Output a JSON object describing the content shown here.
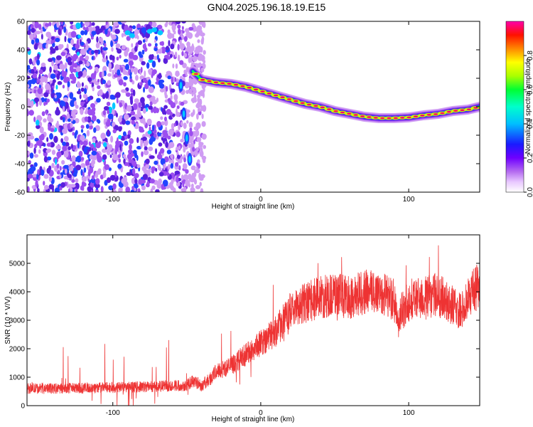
{
  "title": "GN04.2025.196.18.19.E15",
  "chart_data": [
    {
      "type": "heatmap",
      "xlabel": "Height of straight line (km)",
      "ylabel": "Frequency (Hz)",
      "xlim": [
        -158,
        148
      ],
      "ylim": [
        -60,
        60
      ],
      "xticks": [
        -100,
        0,
        100
      ],
      "yticks": [
        -60,
        -40,
        -20,
        0,
        20,
        40,
        60
      ],
      "ridge": {
        "x": [
          -46,
          -40,
          -30,
          -20,
          -10,
          0,
          10,
          20,
          30,
          40,
          50,
          60,
          70,
          80,
          90,
          100,
          110,
          120,
          130,
          140,
          148
        ],
        "y": [
          25,
          19,
          17,
          16,
          14,
          11,
          8,
          5,
          2,
          0,
          -3,
          -5,
          -7,
          -8,
          -8,
          -7.5,
          -6,
          -5,
          -3,
          -2,
          0
        ]
      },
      "noise_region": {
        "x": [
          -158,
          -38
        ]
      },
      "vertical_streak": {
        "x": [
          -54,
          -52,
          -50,
          -48
        ],
        "y": [
          15,
          -5,
          -22,
          -37
        ]
      },
      "colorbar": {
        "label": "Normalized spectral amplitude",
        "range": [
          0,
          1
        ],
        "ticks": [
          0.0,
          0.2,
          0.4,
          0.6,
          0.8
        ],
        "colormap": "rainbow"
      }
    },
    {
      "type": "line",
      "xlabel": "Height of straight line (km)",
      "ylabel": "SNR (10 * V/V)",
      "xlim": [
        -158,
        148
      ],
      "ylim": [
        0,
        6000
      ],
      "xticks": [
        -100,
        0,
        100
      ],
      "yticks": [
        0,
        1000,
        2000,
        3000,
        4000,
        5000
      ],
      "color": "#ee3333",
      "x": [
        -158,
        -140,
        -120,
        -100,
        -80,
        -60,
        -50,
        -45,
        -40,
        -35,
        -30,
        -20,
        -10,
        0,
        10,
        20,
        30,
        40,
        50,
        60,
        70,
        80,
        85,
        90,
        93,
        95,
        100,
        110,
        120,
        130,
        135,
        140,
        148
      ],
      "y": [
        600,
        600,
        620,
        640,
        660,
        700,
        720,
        900,
        700,
        900,
        1200,
        1400,
        1800,
        2200,
        2600,
        3300,
        3600,
        3800,
        3900,
        3800,
        4000,
        4000,
        3900,
        3700,
        2800,
        3300,
        3700,
        3800,
        3900,
        3500,
        3300,
        3800,
        4300
      ]
    }
  ]
}
